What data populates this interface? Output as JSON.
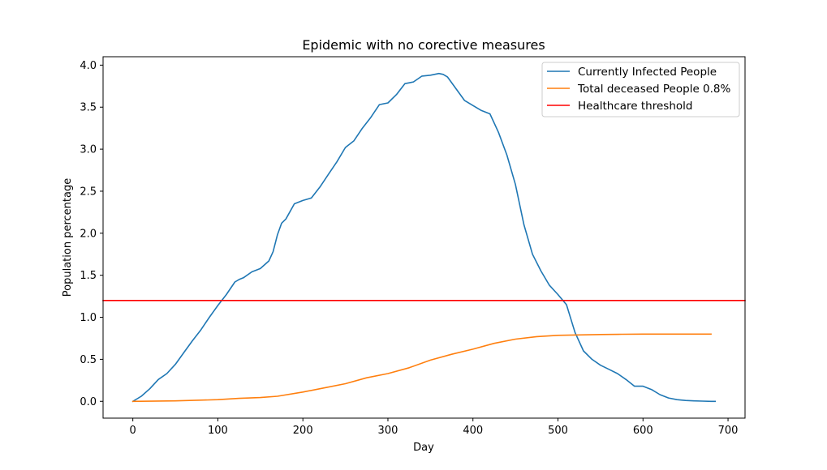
{
  "chart_data": {
    "type": "line",
    "title": "Epidemic with no corective measures",
    "xlabel": "Day",
    "ylabel": "Population percentage",
    "xlim": [
      -35,
      720
    ],
    "ylim": [
      -0.2,
      4.1
    ],
    "xticks": [
      0,
      100,
      200,
      300,
      400,
      500,
      600,
      700
    ],
    "xtick_labels": [
      "0",
      "100",
      "200",
      "300",
      "400",
      "500",
      "600",
      "700"
    ],
    "yticks": [
      0.0,
      0.5,
      1.0,
      1.5,
      2.0,
      2.5,
      3.0,
      3.5,
      4.0
    ],
    "ytick_labels": [
      "0.0",
      "0.5",
      "1.0",
      "1.5",
      "2.0",
      "2.5",
      "3.0",
      "3.5",
      "4.0"
    ],
    "grid": false,
    "legend_position": "top-right",
    "series": [
      {
        "name": "Currently Infected People",
        "color": "#1f77b4",
        "x": [
          0,
          10,
          20,
          30,
          40,
          50,
          60,
          70,
          80,
          90,
          100,
          110,
          120,
          125,
          130,
          140,
          150,
          160,
          165,
          170,
          175,
          180,
          190,
          200,
          210,
          220,
          230,
          240,
          250,
          260,
          270,
          280,
          290,
          300,
          310,
          320,
          325,
          330,
          340,
          350,
          360,
          365,
          370,
          380,
          390,
          400,
          410,
          420,
          430,
          440,
          450,
          460,
          470,
          480,
          490,
          500,
          510,
          520,
          530,
          540,
          550,
          560,
          570,
          580,
          590,
          600,
          610,
          620,
          630,
          640,
          650,
          660,
          670,
          680,
          685
        ],
        "y": [
          0.0,
          0.06,
          0.15,
          0.26,
          0.33,
          0.44,
          0.58,
          0.72,
          0.85,
          1.0,
          1.14,
          1.27,
          1.42,
          1.45,
          1.47,
          1.54,
          1.58,
          1.67,
          1.78,
          1.98,
          2.12,
          2.17,
          2.35,
          2.39,
          2.42,
          2.55,
          2.7,
          2.85,
          3.02,
          3.1,
          3.25,
          3.38,
          3.53,
          3.55,
          3.65,
          3.78,
          3.79,
          3.8,
          3.87,
          3.88,
          3.9,
          3.89,
          3.86,
          3.72,
          3.58,
          3.52,
          3.46,
          3.42,
          3.2,
          2.93,
          2.58,
          2.1,
          1.75,
          1.55,
          1.38,
          1.27,
          1.15,
          0.82,
          0.6,
          0.5,
          0.43,
          0.38,
          0.33,
          0.26,
          0.18,
          0.18,
          0.14,
          0.08,
          0.04,
          0.02,
          0.01,
          0.005,
          0.002,
          0.0,
          0.0
        ]
      },
      {
        "name": "Total deceased People 0.8%",
        "color": "#ff7f0e",
        "x": [
          0,
          50,
          100,
          125,
          150,
          170,
          200,
          225,
          250,
          275,
          300,
          325,
          350,
          375,
          400,
          425,
          450,
          475,
          500,
          525,
          550,
          575,
          600,
          625,
          650,
          680
        ],
        "y": [
          0.0,
          0.005,
          0.02,
          0.035,
          0.045,
          0.06,
          0.11,
          0.16,
          0.21,
          0.28,
          0.33,
          0.4,
          0.49,
          0.56,
          0.62,
          0.69,
          0.74,
          0.77,
          0.785,
          0.79,
          0.795,
          0.798,
          0.8,
          0.8,
          0.8,
          0.8
        ]
      },
      {
        "name": "Healthcare threshold",
        "color": "#ff0000",
        "x": [
          -35,
          720
        ],
        "y": [
          1.2,
          1.2
        ]
      }
    ]
  }
}
